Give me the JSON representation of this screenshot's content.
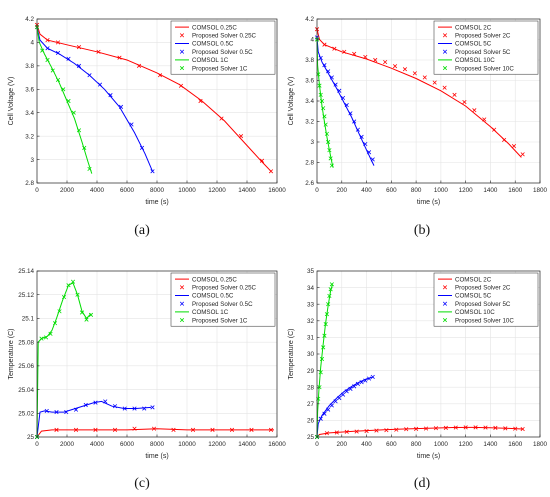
{
  "chart_data": [
    {
      "type": "line",
      "panel_label": "(a)",
      "xlabel": "time (s)",
      "ylabel": "Cell Voltage (V)",
      "xlim": [
        0,
        16000
      ],
      "ylim": [
        2.8,
        4.2
      ],
      "xticks": [
        0,
        2000,
        4000,
        6000,
        8000,
        10000,
        12000,
        14000,
        16000
      ],
      "xtick_labels": [
        "0",
        "2000",
        "4000",
        "6000",
        "8000",
        "10000",
        "12000",
        "14000",
        "16000"
      ],
      "yticks": [
        2.8,
        3,
        3.2,
        3.4,
        3.6,
        3.8,
        4,
        4.2
      ],
      "ytick_labels": [
        "2.8",
        "3",
        "3.2",
        "3.4",
        "3.6",
        "3.8",
        "4",
        "4.2"
      ],
      "grid": true,
      "legend_position": "top-right",
      "series": [
        {
          "name": "COMSOL 0.25C",
          "style": "line",
          "color": "#ff0000",
          "x": [
            0,
            200,
            700,
            2000,
            4000,
            6000,
            8000,
            9500,
            11000,
            12500,
            14000,
            15000,
            15600
          ],
          "y": [
            4.15,
            4.07,
            4.02,
            3.98,
            3.92,
            3.85,
            3.74,
            3.64,
            3.5,
            3.33,
            3.12,
            2.98,
            2.9
          ]
        },
        {
          "name": "Proposed Solver 0.25C",
          "style": "marker",
          "color": "#ff0000",
          "x": [
            0,
            700,
            1400,
            2800,
            4100,
            5500,
            6800,
            8200,
            9600,
            10900,
            12300,
            13600,
            15000,
            15600
          ],
          "y": [
            4.15,
            4.02,
            4,
            3.96,
            3.92,
            3.87,
            3.8,
            3.72,
            3.63,
            3.5,
            3.35,
            3.2,
            2.99,
            2.9
          ]
        },
        {
          "name": "COMSOL 0.5C",
          "style": "line",
          "color": "#0000ff",
          "x": [
            0,
            200,
            700,
            1500,
            2500,
            3500,
            4500,
            5500,
            6500,
            7200,
            7700
          ],
          "y": [
            4.13,
            4.02,
            3.95,
            3.9,
            3.82,
            3.72,
            3.6,
            3.45,
            3.23,
            3.05,
            2.9
          ]
        },
        {
          "name": "Proposed Solver 0.5C",
          "style": "marker",
          "color": "#0000ff",
          "x": [
            0,
            700,
            1400,
            2100,
            2800,
            3500,
            4200,
            4900,
            5600,
            6300,
            7000,
            7700
          ],
          "y": [
            4.13,
            3.95,
            3.91,
            3.86,
            3.8,
            3.72,
            3.64,
            3.55,
            3.45,
            3.3,
            3.1,
            2.9
          ]
        },
        {
          "name": "COMSOL 1C",
          "style": "line",
          "color": "#00dd00",
          "x": [
            0,
            150,
            500,
            1000,
            1500,
            2000,
            2500,
            3000,
            3400,
            3650
          ],
          "y": [
            4.13,
            4.0,
            3.9,
            3.78,
            3.65,
            3.5,
            3.35,
            3.15,
            2.98,
            2.88
          ]
        },
        {
          "name": "Proposed Solver 1C",
          "style": "marker",
          "color": "#00dd00",
          "x": [
            0,
            350,
            700,
            1050,
            1400,
            1750,
            2100,
            2450,
            2800,
            3150,
            3500
          ],
          "y": [
            4.13,
            3.93,
            3.85,
            3.76,
            3.68,
            3.6,
            3.5,
            3.4,
            3.25,
            3.1,
            2.92
          ]
        }
      ]
    },
    {
      "type": "line",
      "panel_label": "(b)",
      "xlabel": "time (s)",
      "ylabel": "Cell Voltage (V)",
      "xlim": [
        0,
        1800
      ],
      "ylim": [
        2.6,
        4.2
      ],
      "xticks": [
        0,
        200,
        400,
        600,
        800,
        1000,
        1200,
        1400,
        1600,
        1800
      ],
      "xtick_labels": [
        "0",
        "200",
        "400",
        "600",
        "800",
        "1000",
        "1200",
        "1400",
        "1600",
        "1800"
      ],
      "yticks": [
        2.6,
        2.8,
        3,
        3.2,
        3.4,
        3.6,
        3.8,
        4,
        4.2
      ],
      "ytick_labels": [
        "2.6",
        "2.8",
        "3",
        "3.2",
        "3.4",
        "3.6",
        "3.8",
        "4",
        "4.2"
      ],
      "grid": true,
      "legend_position": "top-right",
      "series": [
        {
          "name": "COMSOL 2C",
          "style": "line",
          "color": "#ff0000",
          "x": [
            0,
            20,
            60,
            200,
            400,
            600,
            800,
            1000,
            1200,
            1400,
            1550,
            1650
          ],
          "y": [
            4.1,
            4.0,
            3.95,
            3.88,
            3.81,
            3.72,
            3.62,
            3.5,
            3.35,
            3.15,
            2.98,
            2.85
          ]
        },
        {
          "name": "Proposed Solver 2C",
          "style": "marker",
          "color": "#ff0000",
          "x": [
            0,
            60,
            140,
            220,
            300,
            390,
            470,
            550,
            630,
            710,
            790,
            870,
            950,
            1030,
            1110,
            1190,
            1270,
            1350,
            1430,
            1510,
            1590,
            1660
          ],
          "y": [
            4.1,
            3.95,
            3.91,
            3.88,
            3.86,
            3.83,
            3.8,
            3.78,
            3.74,
            3.71,
            3.67,
            3.63,
            3.58,
            3.53,
            3.46,
            3.39,
            3.31,
            3.22,
            3.12,
            3.02,
            2.96,
            2.88
          ]
        },
        {
          "name": "COMSOL 5C",
          "style": "line",
          "color": "#0000ff",
          "x": [
            0,
            10,
            40,
            100,
            160,
            220,
            280,
            340,
            400,
            440,
            460
          ],
          "y": [
            4.02,
            3.88,
            3.78,
            3.65,
            3.52,
            3.38,
            3.24,
            3.08,
            2.92,
            2.82,
            2.77
          ]
        },
        {
          "name": "Proposed Solver 5C",
          "style": "marker",
          "color": "#0000ff",
          "x": [
            0,
            30,
            60,
            90,
            120,
            150,
            180,
            210,
            240,
            270,
            300,
            330,
            360,
            390,
            420,
            450
          ],
          "y": [
            4.02,
            3.82,
            3.75,
            3.69,
            3.63,
            3.56,
            3.5,
            3.43,
            3.36,
            3.28,
            3.2,
            3.12,
            3.05,
            2.98,
            2.9,
            2.83
          ]
        },
        {
          "name": "COMSOL 10C",
          "style": "line",
          "color": "#00dd00",
          "x": [
            0,
            5,
            20,
            40,
            60,
            80,
            100,
            120,
            130
          ],
          "y": [
            4.0,
            3.75,
            3.55,
            3.35,
            3.2,
            3.05,
            2.92,
            2.8,
            2.75
          ]
        },
        {
          "name": "Proposed Solver 10C",
          "style": "marker",
          "color": "#00dd00",
          "x": [
            0,
            10,
            20,
            30,
            40,
            50,
            60,
            70,
            80,
            90,
            100,
            110,
            120
          ],
          "y": [
            4.0,
            3.66,
            3.55,
            3.46,
            3.4,
            3.33,
            3.25,
            3.17,
            3.08,
            3.0,
            2.92,
            2.84,
            2.77
          ]
        }
      ]
    },
    {
      "type": "line",
      "panel_label": "(c)",
      "xlabel": "time (s)",
      "ylabel": "Temperature (C)",
      "xlim": [
        0,
        16000
      ],
      "ylim": [
        25,
        25.14
      ],
      "xticks": [
        0,
        2000,
        4000,
        6000,
        8000,
        10000,
        12000,
        14000,
        16000
      ],
      "xtick_labels": [
        "0",
        "2000",
        "4000",
        "6000",
        "8000",
        "10000",
        "12000",
        "14000",
        "16000"
      ],
      "yticks": [
        25,
        25.02,
        25.04,
        25.06,
        25.08,
        25.1,
        25.12,
        25.14
      ],
      "ytick_labels": [
        "25",
        "25.02",
        "25.04",
        "25.06",
        "25.08",
        "25.1",
        "25.12",
        "25.14"
      ],
      "grid": true,
      "legend_position": "top-right",
      "series": [
        {
          "name": "COMSOL 0.25C",
          "style": "line",
          "color": "#ff0000",
          "x": [
            0,
            300,
            1000,
            2000,
            4000,
            6000,
            8000,
            10000,
            12000,
            14000,
            15800
          ],
          "y": [
            25,
            25.005,
            25.006,
            25.006,
            25.006,
            25.006,
            25.007,
            25.006,
            25.006,
            25.006,
            25.006
          ]
        },
        {
          "name": "Proposed Solver 0.25C",
          "style": "marker",
          "color": "#ff0000",
          "x": [
            0,
            1300,
            2600,
            3900,
            5200,
            6500,
            7800,
            9100,
            10400,
            11700,
            13000,
            14300,
            15600
          ],
          "y": [
            25,
            25.006,
            25.006,
            25.006,
            25.006,
            25.007,
            25.007,
            25.006,
            25.006,
            25.006,
            25.006,
            25.006,
            25.006
          ]
        },
        {
          "name": "COMSOL 0.5C",
          "style": "line",
          "color": "#0000ff",
          "x": [
            0,
            200,
            500,
            1000,
            1800,
            2800,
            3800,
            4300,
            5000,
            5800,
            6600,
            7600
          ],
          "y": [
            25,
            25.021,
            25.022,
            25.021,
            25.021,
            25.025,
            25.029,
            25.03,
            25.026,
            25.024,
            25.024,
            25.025
          ]
        },
        {
          "name": "Proposed Solver 0.5C",
          "style": "marker",
          "color": "#0000ff",
          "x": [
            0,
            650,
            1300,
            1950,
            2600,
            3250,
            3900,
            4550,
            5200,
            5850,
            6500,
            7150,
            7700
          ],
          "y": [
            25,
            25.022,
            25.021,
            25.021,
            25.023,
            25.027,
            25.029,
            25.03,
            25.026,
            25.024,
            25.024,
            25.024,
            25.025
          ]
        },
        {
          "name": "COMSOL 1C",
          "style": "line",
          "color": "#00dd00",
          "x": [
            0,
            80,
            300,
            700,
            1000,
            1300,
            1700,
            2100,
            2400,
            2700,
            3000,
            3300,
            3600
          ],
          "y": [
            25,
            25.08,
            25.083,
            25.085,
            25.09,
            25.1,
            25.115,
            25.128,
            25.13,
            25.12,
            25.106,
            25.1,
            25.104
          ]
        },
        {
          "name": "Proposed Solver 1C",
          "style": "marker",
          "color": "#00dd00",
          "x": [
            0,
            300,
            600,
            900,
            1200,
            1500,
            1800,
            2100,
            2400,
            2700,
            3000,
            3300,
            3600
          ],
          "y": [
            25,
            25.083,
            25.084,
            25.087,
            25.096,
            25.106,
            25.118,
            25.128,
            25.131,
            25.12,
            25.105,
            25.099,
            25.103
          ]
        }
      ]
    },
    {
      "type": "line",
      "panel_label": "(d)",
      "xlabel": "time (s)",
      "ylabel": "Temperature (C)",
      "xlim": [
        0,
        1800
      ],
      "ylim": [
        25,
        35
      ],
      "xticks": [
        0,
        200,
        400,
        600,
        800,
        1000,
        1200,
        1400,
        1600,
        1800
      ],
      "xtick_labels": [
        "0",
        "200",
        "400",
        "600",
        "800",
        "1000",
        "1200",
        "1400",
        "1600",
        "1800"
      ],
      "yticks": [
        25,
        26,
        27,
        28,
        29,
        30,
        31,
        32,
        33,
        34,
        35
      ],
      "ytick_labels": [
        "25",
        "26",
        "27",
        "28",
        "29",
        "30",
        "31",
        "32",
        "33",
        "34",
        "35"
      ],
      "grid": true,
      "legend_position": "top-right",
      "series": [
        {
          "name": "COMSOL 2C",
          "style": "line",
          "color": "#ff0000",
          "x": [
            0,
            20,
            100,
            300,
            500,
            700,
            900,
            1100,
            1250,
            1400,
            1550,
            1660
          ],
          "y": [
            25,
            25.15,
            25.25,
            25.35,
            25.42,
            25.48,
            25.53,
            25.57,
            25.58,
            25.56,
            25.52,
            25.48
          ]
        },
        {
          "name": "Proposed Solver 2C",
          "style": "marker",
          "color": "#ff0000",
          "x": [
            0,
            80,
            160,
            240,
            320,
            400,
            480,
            560,
            640,
            720,
            800,
            880,
            960,
            1040,
            1120,
            1200,
            1280,
            1360,
            1440,
            1520,
            1600,
            1660
          ],
          "y": [
            25,
            25.23,
            25.27,
            25.31,
            25.33,
            25.36,
            25.39,
            25.41,
            25.44,
            25.47,
            25.49,
            25.51,
            25.53,
            25.55,
            25.57,
            25.58,
            25.58,
            25.57,
            25.55,
            25.52,
            25.5,
            25.48
          ]
        },
        {
          "name": "COMSOL 5C",
          "style": "line",
          "color": "#0000ff",
          "x": [
            0,
            10,
            40,
            100,
            160,
            220,
            280,
            340,
            400,
            450
          ],
          "y": [
            25,
            25.8,
            26.3,
            26.9,
            27.35,
            27.75,
            28.05,
            28.3,
            28.5,
            28.6
          ]
        },
        {
          "name": "Proposed Solver 5C",
          "style": "marker",
          "color": "#0000ff",
          "x": [
            0,
            30,
            60,
            90,
            120,
            150,
            180,
            210,
            240,
            270,
            300,
            330,
            360,
            390,
            420,
            450
          ],
          "y": [
            25,
            26.1,
            26.4,
            26.65,
            26.9,
            27.15,
            27.35,
            27.55,
            27.75,
            27.9,
            28.05,
            28.2,
            28.3,
            28.4,
            28.52,
            28.62
          ]
        },
        {
          "name": "COMSOL 10C",
          "style": "line",
          "color": "#00dd00",
          "x": [
            0,
            5,
            15,
            30,
            50,
            70,
            90,
            110,
            125
          ],
          "y": [
            25,
            26.5,
            27.8,
            29.2,
            30.6,
            31.9,
            32.9,
            33.8,
            34.2
          ]
        },
        {
          "name": "Proposed Solver 10C",
          "style": "marker",
          "color": "#00dd00",
          "x": [
            0,
            10,
            20,
            30,
            40,
            50,
            60,
            70,
            80,
            90,
            100,
            110,
            120
          ],
          "y": [
            25,
            27.3,
            28.0,
            28.9,
            29.7,
            30.4,
            31.1,
            31.8,
            32.4,
            33.0,
            33.5,
            33.9,
            34.2
          ]
        }
      ]
    }
  ]
}
